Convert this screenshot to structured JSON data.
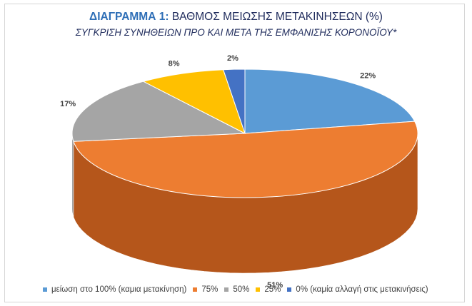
{
  "title": {
    "prefix": "ΔΙΑΓΡΑΜΜΑ 1:",
    "main": "ΒΑΘΜΟΣ ΜΕΙΩΣΗΣ ΜΕΤΑΚΙΝΗΣΕΩΝ (%)"
  },
  "subtitle": "ΣΥΓΚΡΙΣΗ ΣΥΝΗΘΕΙΩΝ ΠΡΟ ΚΑΙ ΜΕΤΑ ΤΗΣ ΕΜΦΑΝΙΣΗΣ ΚΟΡΟΝΟΪΟΥ*",
  "chart_data": {
    "type": "pie",
    "title": "ΔΙΑΓΡΑΜΜΑ 1: ΒΑΘΜΟΣ ΜΕΙΩΣΗΣ ΜΕΤΑΚΙΝΗΣΕΩΝ (%)",
    "subtitle": "ΣΥΓΚΡΙΣΗ ΣΥΝΗΘΕΙΩΝ ΠΡΟ ΚΑΙ ΜΕΤΑ ΤΗΣ ΕΜΦΑΝΙΣΗΣ ΚΟΡΟΝΟΪΟΥ*",
    "style": "3d",
    "legend_position": "bottom",
    "categories": [
      "μείωση στο 100% (καμια μετακίνηση)",
      "75%",
      "50%",
      "25%",
      "0%  (καμία αλλαγή στις μετακινήσεις)"
    ],
    "values": [
      22,
      51,
      17,
      8,
      2
    ],
    "labels": [
      "22%",
      "51%",
      "17%",
      "8%",
      "2%"
    ],
    "colors": [
      "#5b9bd5",
      "#ed7d31",
      "#a5a5a5",
      "#ffc000",
      "#4472c4"
    ],
    "side_colors": [
      "#2e6aa3",
      "#b5561b",
      "#7d7d7d",
      "#c29100",
      "#2c5596"
    ]
  }
}
